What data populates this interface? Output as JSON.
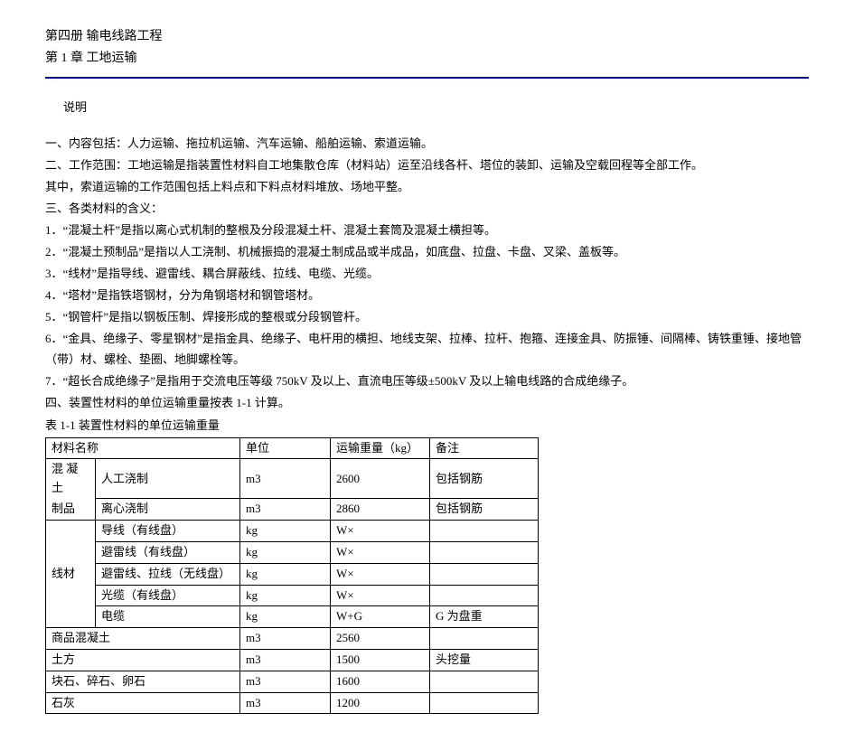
{
  "header": {
    "volume": "第四册  输电线路工程",
    "chapter": "第 1 章 工地运输"
  },
  "section_label": "说明",
  "paragraphs": [
    "一、内容包括：人力运输、拖拉机运输、汽车运输、船舶运输、索道运输。",
    "二、工作范围：工地运输是指装置性材料自工地集散仓库（材料站）运至沿线各杆、塔位的装卸、运输及空载回程等全部工作。",
    "其中，索道运输的工作范围包括上料点和下料点材料堆放、场地平整。",
    "三、各类材料的含义：",
    "1．“混凝土杆”是指以离心式机制的整根及分段混凝土杆、混凝土套筒及混凝土横担等。",
    "2．“混凝土预制品”是指以人工浇制、机械振捣的混凝土制成品或半成品，如底盘、拉盘、卡盘、叉梁、盖板等。",
    "3．“线材”是指导线、避雷线、耦合屏蔽线、拉线、电缆、光缆。",
    "4．“塔材”是指铁塔钢材，分为角钢塔材和钢管塔材。",
    "5．“钢管杆”是指以钢板压制、焊接形成的整根或分段钢管杆。",
    "6．“金具、绝缘子、零星钢材”是指金具、绝缘子、电杆用的横担、地线支架、拉棒、拉杆、抱箍、连接金具、防振锤、间隔棒、铸铁重锤、接地管（带）材、螺栓、垫圈、地脚螺栓等。",
    "7．“超长合成绝缘子”是指用于交流电压等级 750kV 及以上、直流电压等级±500kV 及以上输电线路的合成绝缘子。",
    "四、装置性材料的单位运输重量按表 1-1 计算。"
  ],
  "table_caption": "表 1-1   装置性材料的单位运输重量",
  "table": {
    "headers": [
      "材料名称",
      "单位",
      "运输重量（kg）",
      "备注"
    ],
    "rows": [
      {
        "cat1": "混 凝 土",
        "cat1_rowspan": 2,
        "cat2": "人工浇制",
        "unit": "m3",
        "weight": "2600",
        "note": "包括钢筋"
      },
      {
        "cat2_prefix": "制品",
        "cat2": "离心浇制",
        "unit": "m3",
        "weight": "2860",
        "note": "包括钢筋"
      },
      {
        "cat1": "线材",
        "cat1_rowspan": 5,
        "cat2": "导线（有线盘）",
        "unit": "kg",
        "weight": "W×",
        "note": ""
      },
      {
        "cat2": "避雷线（有线盘）",
        "unit": "kg",
        "weight": "W×",
        "note": ""
      },
      {
        "cat2": "避雷线、拉线（无线盘）",
        "unit": "kg",
        "weight": "W×",
        "note": ""
      },
      {
        "cat2": "光缆（有线盘）",
        "unit": "kg",
        "weight": "W×",
        "note": ""
      },
      {
        "cat2": "电缆",
        "unit": "kg",
        "weight": "W+G",
        "note": "G 为盘重"
      },
      {
        "cat1_full": "商品混凝土",
        "unit": "m3",
        "weight": "2560",
        "note": ""
      },
      {
        "cat1_full": "土方",
        "unit": "m3",
        "weight": "1500",
        "note": "头挖量"
      },
      {
        "cat1_full": "块石、碎石、卵石",
        "unit": "m3",
        "weight": "1600",
        "note": ""
      },
      {
        "cat1_full": "石灰",
        "unit": "m3",
        "weight": "1200",
        "note": ""
      }
    ]
  }
}
